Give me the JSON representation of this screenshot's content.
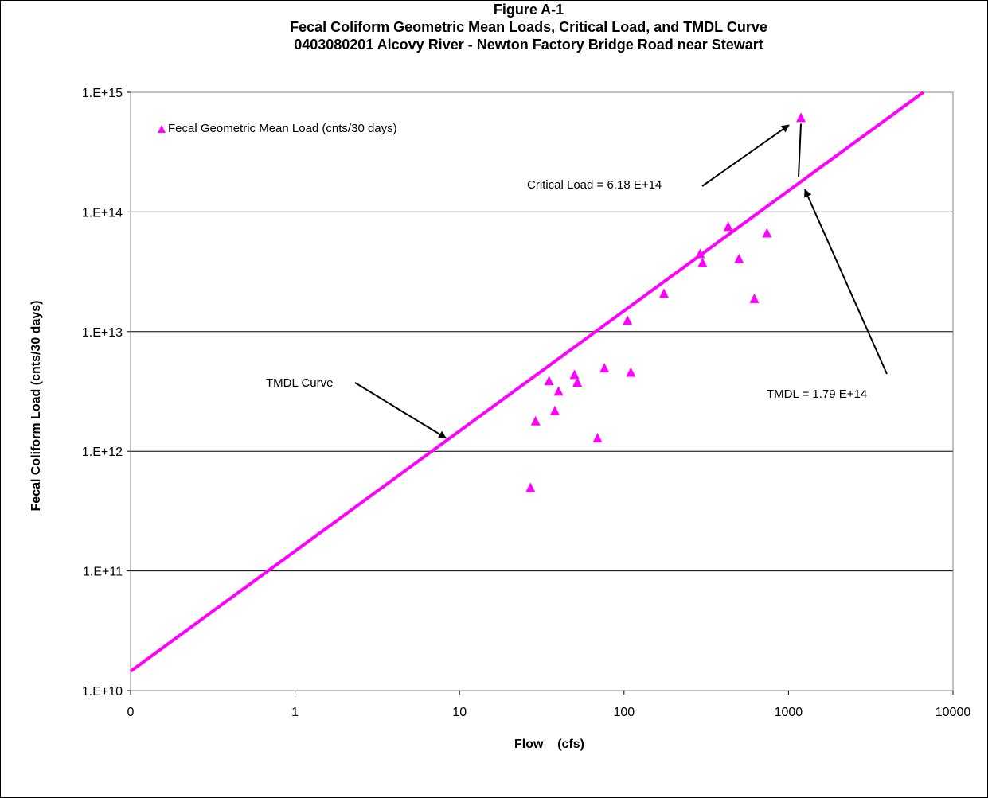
{
  "chart_data": {
    "type": "scatter",
    "title": "Figure A-1",
    "subtitle_lines": [
      "Fecal Coliform Geometric Mean Loads, Critical Load, and TMDL Curve",
      "0403080201 Alcovy River - Newton Factory Bridge Road near Stewart"
    ],
    "xlabel": "Flow    (cfs)",
    "ylabel": "Fecal Coliform Load  (cnts/30 days)",
    "x_scale": "log",
    "y_scale": "log",
    "xlim": [
      0.1,
      10000
    ],
    "ylim": [
      10000000000.0,
      1000000000000000.0
    ],
    "x_tick_labels": [
      "0",
      "1",
      "10",
      "100",
      "1000",
      "10000"
    ],
    "y_tick_labels": [
      "1.E+10",
      "1.E+11",
      "1.E+12",
      "1.E+13",
      "1.E+14",
      "1.E+15"
    ],
    "grid": "horizontal",
    "legend_position": "top-left",
    "series": [
      {
        "name": "Fecal Geometric Mean Load (cnts/30 days)",
        "marker": "triangle",
        "color": "#FF00FF",
        "points": [
          {
            "x": 27,
            "y": 500000000000.0
          },
          {
            "x": 29,
            "y": 1800000000000.0
          },
          {
            "x": 35,
            "y": 3900000000000.0
          },
          {
            "x": 38,
            "y": 2200000000000.0
          },
          {
            "x": 40,
            "y": 3200000000000.0
          },
          {
            "x": 50,
            "y": 4400000000000.0
          },
          {
            "x": 52,
            "y": 3800000000000.0
          },
          {
            "x": 69,
            "y": 1300000000000.0
          },
          {
            "x": 76,
            "y": 5000000000000.0
          },
          {
            "x": 105,
            "y": 12500000000000.0
          },
          {
            "x": 110,
            "y": 4600000000000.0
          },
          {
            "x": 175,
            "y": 21000000000000.0
          },
          {
            "x": 290,
            "y": 45000000000000.0
          },
          {
            "x": 300,
            "y": 38000000000000.0
          },
          {
            "x": 430,
            "y": 76000000000000.0
          },
          {
            "x": 500,
            "y": 41000000000000.0
          },
          {
            "x": 620,
            "y": 19000000000000.0
          },
          {
            "x": 740,
            "y": 67000000000000.0
          },
          {
            "x": 1190,
            "y": 618000000000000.0
          }
        ]
      },
      {
        "name": "TMDL Curve",
        "type": "line",
        "color": "#FF00FF",
        "points": [
          {
            "x": 0.1,
            "y": 14500000000.0
          },
          {
            "x": 6600,
            "y": 1000000000000000.0
          }
        ]
      }
    ],
    "annotations": [
      {
        "text": "Critical Load = 6.18 E+14",
        "points_to": {
          "x": 1100,
          "y": 620000000000000.0
        }
      },
      {
        "text": "TMDL = 1.79 E+14",
        "points_to": {
          "x": 1190,
          "y": 179000000000000.0
        }
      },
      {
        "text": "TMDL Curve",
        "points_to": {
          "x": 8,
          "y": 1250000000000.0
        }
      }
    ]
  }
}
